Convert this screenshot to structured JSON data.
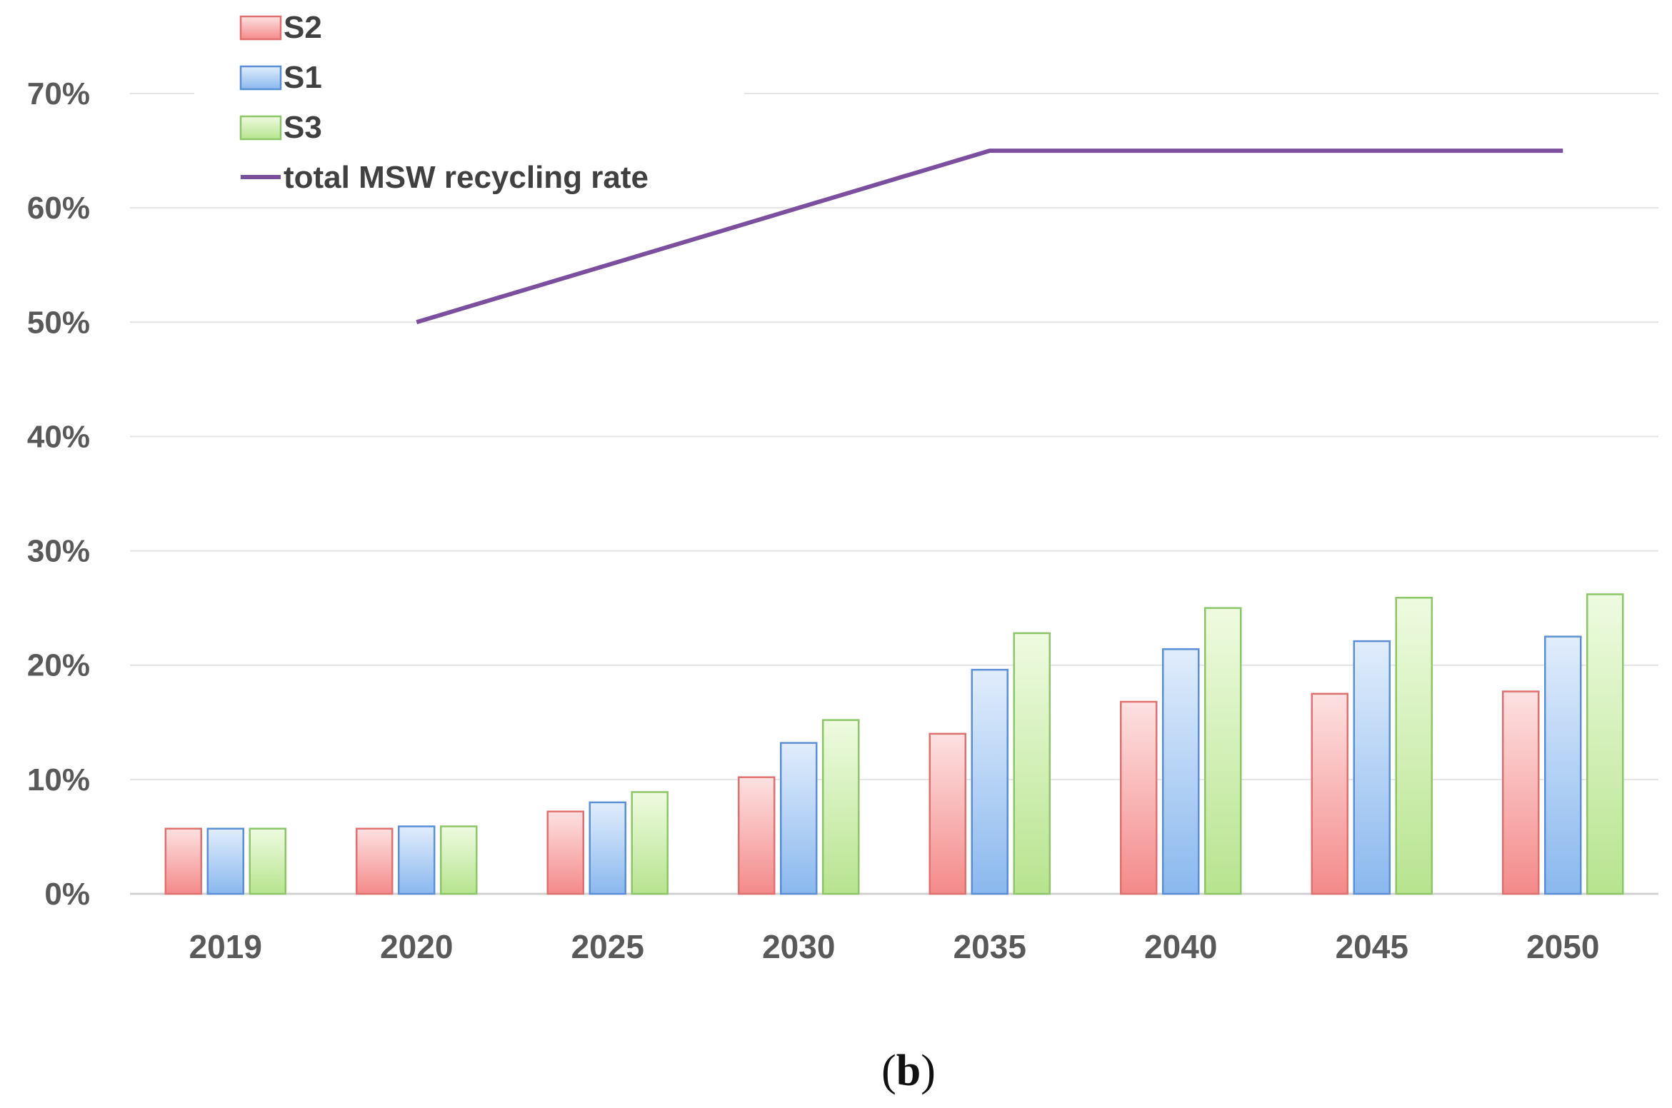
{
  "caption": {
    "open": "(",
    "letter": "b",
    "close": ")"
  },
  "chart_data": {
    "type": "bar",
    "title": "",
    "xlabel": "",
    "ylabel": "",
    "ylim": [
      0,
      0.7
    ],
    "yticks": [
      0,
      0.1,
      0.2,
      0.3,
      0.4,
      0.5,
      0.6,
      0.7
    ],
    "ytick_labels": [
      "0%",
      "10%",
      "20%",
      "30%",
      "40%",
      "50%",
      "60%",
      "70%"
    ],
    "categories": [
      "2019",
      "2020",
      "2025",
      "2030",
      "2035",
      "2040",
      "2045",
      "2050"
    ],
    "grid": true,
    "legend_position": "top-left",
    "series": [
      {
        "name": "S2",
        "kind": "bar",
        "values": [
          0.057,
          0.057,
          0.072,
          0.102,
          0.14,
          0.168,
          0.175,
          0.177
        ],
        "fill_light": "#fde1e1",
        "fill_dark": "#f48a8a",
        "stroke": "#e07070"
      },
      {
        "name": "S1",
        "kind": "bar",
        "values": [
          0.057,
          0.059,
          0.08,
          0.132,
          0.196,
          0.214,
          0.221,
          0.225
        ],
        "fill_light": "#e1edfc",
        "fill_dark": "#8ab8ee",
        "stroke": "#5a8fd6"
      },
      {
        "name": "S3",
        "kind": "bar",
        "values": [
          0.057,
          0.059,
          0.089,
          0.152,
          0.228,
          0.25,
          0.259,
          0.262
        ],
        "fill_light": "#eefbe0",
        "fill_dark": "#b7e48f",
        "stroke": "#8cc668"
      },
      {
        "name": "total MSW recycling rate",
        "kind": "line",
        "values": [
          null,
          0.5,
          0.55,
          0.6,
          0.65,
          0.65,
          0.65,
          0.65
        ],
        "color": "#7b4f9d"
      }
    ]
  }
}
